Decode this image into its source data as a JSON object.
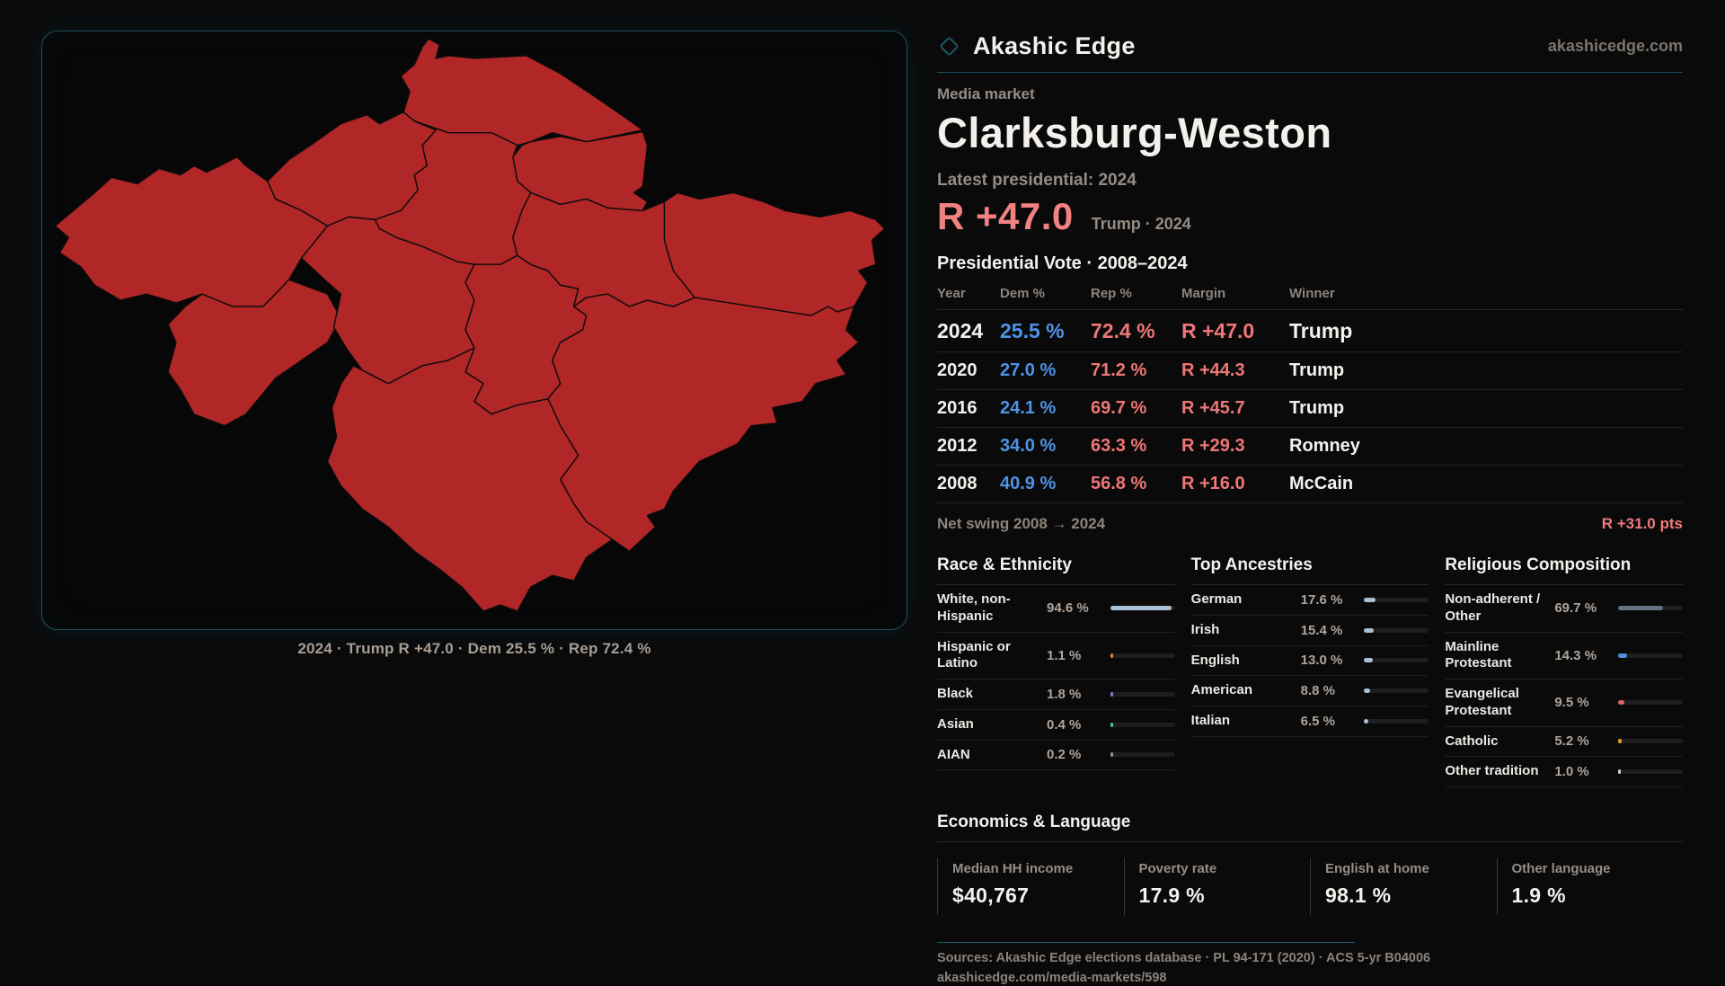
{
  "brand": {
    "name": "Akashic Edge",
    "site": "akashicedge.com"
  },
  "colors": {
    "map_fill": "#b12626",
    "accent_teal": "#1d4f5a",
    "dem_blue": "#4e93e6",
    "rep_red": "#ef7676",
    "margin_salmon": "#f28282"
  },
  "map": {
    "caption": "2024 · Trump R +47.0 · Dem 25.5 % · Rep 72.4 %"
  },
  "market": {
    "kicker": "Media market",
    "name": "Clarksburg-Weston",
    "latest": "Latest presidential: 2024",
    "headline_margin": "R +47.0",
    "headline_note": "Trump · 2024"
  },
  "vote": {
    "title": "Presidential Vote · 2008–2024",
    "headers": {
      "year": "Year",
      "dem": "Dem %",
      "rep": "Rep %",
      "margin": "Margin",
      "winner": "Winner"
    },
    "rows": [
      {
        "year": "2024",
        "dem": "25.5 %",
        "rep": "72.4 %",
        "margin": "R +47.0",
        "winner": "Trump"
      },
      {
        "year": "2020",
        "dem": "27.0 %",
        "rep": "71.2 %",
        "margin": "R +44.3",
        "winner": "Trump"
      },
      {
        "year": "2016",
        "dem": "24.1 %",
        "rep": "69.7 %",
        "margin": "R +45.7",
        "winner": "Trump"
      },
      {
        "year": "2012",
        "dem": "34.0 %",
        "rep": "63.3 %",
        "margin": "R +29.3",
        "winner": "Romney"
      },
      {
        "year": "2008",
        "dem": "40.9 %",
        "rep": "56.8 %",
        "margin": "R +16.0",
        "winner": "McCain"
      }
    ],
    "net_swing_label": "Net swing 2008 → 2024",
    "net_swing_value": "R +31.0 pts"
  },
  "race": {
    "title": "Race & Ethnicity",
    "rows": [
      {
        "label": "White, non-Hispanic",
        "value": "94.6 %",
        "pct": 94.6,
        "color": "#a9bfd4"
      },
      {
        "label": "Hispanic or Latino",
        "value": "1.1 %",
        "pct": 1.1,
        "color": "#e0853a"
      },
      {
        "label": "Black",
        "value": "1.8 %",
        "pct": 1.8,
        "color": "#8b7ae6"
      },
      {
        "label": "Asian",
        "value": "0.4 %",
        "pct": 0.4,
        "color": "#3fc9a4"
      },
      {
        "label": "AIAN",
        "value": "0.2 %",
        "pct": 0.2,
        "color": "#8a9aa8"
      }
    ]
  },
  "ancestries": {
    "title": "Top Ancestries",
    "rows": [
      {
        "label": "German",
        "value": "17.6 %",
        "pct": 17.6,
        "color": "#a9bfd4"
      },
      {
        "label": "Irish",
        "value": "15.4 %",
        "pct": 15.4,
        "color": "#a9bfd4"
      },
      {
        "label": "English",
        "value": "13.0 %",
        "pct": 13.0,
        "color": "#a9bfd4"
      },
      {
        "label": "American",
        "value": "8.8 %",
        "pct": 8.8,
        "color": "#a9bfd4"
      },
      {
        "label": "Italian",
        "value": "6.5 %",
        "pct": 6.5,
        "color": "#a9bfd4"
      }
    ]
  },
  "religion": {
    "title": "Religious Composition",
    "rows": [
      {
        "label": "Non-adherent / Other",
        "value": "69.7 %",
        "pct": 69.7,
        "color": "#657080"
      },
      {
        "label": "Mainline Protestant",
        "value": "14.3 %",
        "pct": 14.3,
        "color": "#4a90d9"
      },
      {
        "label": "Evangelical Protestant",
        "value": "9.5 %",
        "pct": 9.5,
        "color": "#d96464"
      },
      {
        "label": "Catholic",
        "value": "5.2 %",
        "pct": 5.2,
        "color": "#d9a41f"
      },
      {
        "label": "Other tradition",
        "value": "1.0 %",
        "pct": 1.0,
        "color": "#cfcfcf"
      }
    ]
  },
  "economics": {
    "title": "Economics & Language",
    "stats": [
      {
        "label": "Median HH income",
        "value": "$40,767"
      },
      {
        "label": "Poverty rate",
        "value": "17.9 %"
      },
      {
        "label": "English at home",
        "value": "98.1 %"
      },
      {
        "label": "Other language",
        "value": "1.9 %"
      }
    ]
  },
  "footer": {
    "sources": "Sources: Akashic Edge elections database · PL 94-171 (2020) · ACS 5-yr B04006",
    "link": "akashicedge.com/media-markets/598"
  }
}
